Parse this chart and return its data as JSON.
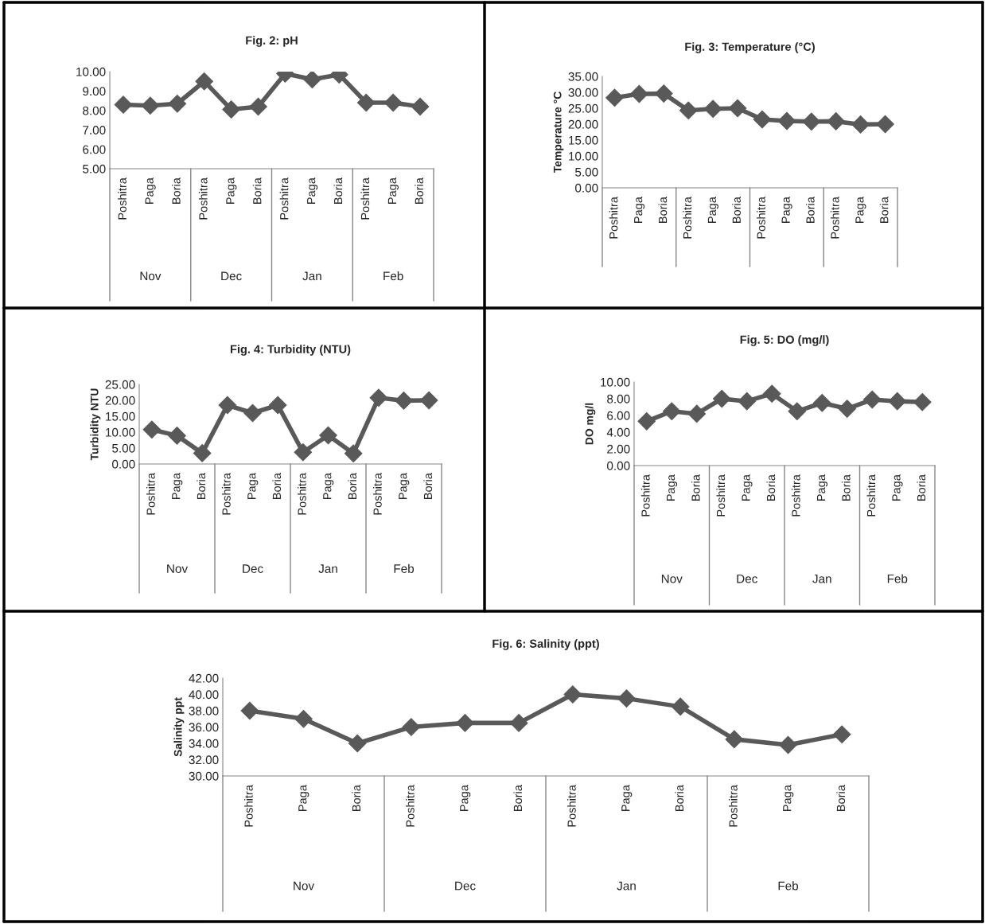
{
  "chart_data": [
    {
      "type": "line",
      "title": "Fig. 2: pH",
      "categories": [
        "Poshitra",
        "Paga",
        "Boria",
        "Poshitra",
        "Paga",
        "Boria",
        "Poshitra",
        "Paga",
        "Boria",
        "Poshitra",
        "Paga",
        "Boria"
      ],
      "annotations": [
        "Nov",
        "Dec",
        "Jan",
        "Feb"
      ],
      "series": [
        {
          "color": "#595959",
          "values": [
            8.3,
            8.25,
            8.35,
            9.5,
            8.05,
            8.2,
            9.9,
            9.6,
            9.85,
            8.4,
            8.4,
            8.2
          ]
        }
      ],
      "ylim": [
        5,
        10
      ],
      "yticks": [
        {
          "value": 5,
          "label": "5.00"
        },
        {
          "value": 6,
          "label": "6.00"
        },
        {
          "value": 7,
          "label": "7.00"
        },
        {
          "value": 8,
          "label": "8.00"
        },
        {
          "value": 9,
          "label": "9.00"
        },
        {
          "value": 10,
          "label": "10.00"
        }
      ],
      "marker": "diamond",
      "line_style": "solid",
      "grid": false,
      "legend": false
    },
    {
      "type": "line",
      "title": "Fig. 3: Temperature (°C)",
      "ylabel": "Temperature °C",
      "categories": [
        "Poshitra",
        "Paga",
        "Boria",
        "Poshitra",
        "Paga",
        "Boria",
        "Poshitra",
        "Paga",
        "Boria",
        "Poshitra",
        "Paga",
        "Boria"
      ],
      "series": [
        {
          "color": "#595959",
          "values": [
            28.3,
            29.5,
            29.6,
            24.3,
            24.8,
            25.0,
            21.5,
            21.0,
            20.8,
            20.9,
            19.9,
            20.0
          ]
        }
      ],
      "ylim": [
        0,
        35
      ],
      "yticks": [
        {
          "value": 0,
          "label": "0.00"
        },
        {
          "value": 5,
          "label": "5.00"
        },
        {
          "value": 10,
          "label": "10.00"
        },
        {
          "value": 15,
          "label": "15.00"
        },
        {
          "value": 20,
          "label": "20.00"
        },
        {
          "value": 25,
          "label": "25.00"
        },
        {
          "value": 30,
          "label": "30.00"
        },
        {
          "value": 35,
          "label": "35.00"
        }
      ],
      "marker": "diamond",
      "line_style": "solid",
      "grid": false,
      "legend": false
    },
    {
      "type": "line",
      "title": "Fig. 4: Turbidity (NTU)",
      "ylabel": "Turbidity NTU",
      "categories": [
        "Poshitra",
        "Paga",
        "Boria",
        "Poshitra",
        "Paga",
        "Boria",
        "Poshitra",
        "Paga",
        "Boria",
        "Poshitra",
        "Paga",
        "Boria"
      ],
      "annotations": [
        "Nov",
        "Dec",
        "Jan",
        "Feb"
      ],
      "series": [
        {
          "color": "#595959",
          "values": [
            10.8,
            8.9,
            3.4,
            18.5,
            16.0,
            18.5,
            3.7,
            9.0,
            3.3,
            20.8,
            19.9,
            20.0
          ]
        }
      ],
      "ylim": [
        0,
        25
      ],
      "yticks": [
        {
          "value": 0,
          "label": "0.00"
        },
        {
          "value": 5,
          "label": "5.00"
        },
        {
          "value": 10,
          "label": "10.00"
        },
        {
          "value": 15,
          "label": "15.00"
        },
        {
          "value": 20,
          "label": "20.00"
        },
        {
          "value": 25,
          "label": "25.00"
        }
      ],
      "marker": "diamond",
      "line_style": "solid",
      "grid": false,
      "legend": false
    },
    {
      "type": "line",
      "title": "Fig. 5: DO (mg/l)",
      "ylabel": "DO mg/l",
      "categories": [
        "Poshitra",
        "Paga",
        "Boria",
        "Poshitra",
        "Paga",
        "Boria",
        "Poshitra",
        "Paga",
        "Boria",
        "Poshitra",
        "Paga",
        "Boria"
      ],
      "annotations": [
        "Nov",
        "Dec",
        "Jan",
        "Feb"
      ],
      "series": [
        {
          "color": "#595959",
          "values": [
            5.3,
            6.5,
            6.2,
            8.0,
            7.7,
            8.6,
            6.5,
            7.5,
            6.8,
            7.9,
            7.7,
            7.6
          ]
        }
      ],
      "ylim": [
        0,
        10
      ],
      "yticks": [
        {
          "value": 0,
          "label": "0.00"
        },
        {
          "value": 2,
          "label": "2.00"
        },
        {
          "value": 4,
          "label": "4.00"
        },
        {
          "value": 6,
          "label": "6.00"
        },
        {
          "value": 8,
          "label": "8.00"
        },
        {
          "value": 10,
          "label": "10.00"
        }
      ],
      "marker": "diamond",
      "line_style": "solid",
      "grid": false,
      "legend": false
    },
    {
      "type": "line",
      "title": "Fig. 6: Salinity (ppt)",
      "ylabel": "Salinity ppt",
      "categories": [
        "Poshitra",
        "Paga",
        "Boria",
        "Poshitra",
        "Paga",
        "Boria",
        "Poshitra",
        "Paga",
        "Boria",
        "Poshitra",
        "Paga",
        "Boria"
      ],
      "annotations": [
        "Nov",
        "Dec",
        "Jan",
        "Feb"
      ],
      "series": [
        {
          "color": "#595959",
          "values": [
            38.0,
            37.0,
            34.0,
            36.0,
            36.5,
            36.5,
            40.0,
            39.5,
            38.5,
            34.5,
            33.8,
            35.1
          ]
        }
      ],
      "ylim": [
        30,
        42
      ],
      "yticks": [
        {
          "value": 30,
          "label": "30.00"
        },
        {
          "value": 32,
          "label": "32.00"
        },
        {
          "value": 34,
          "label": "34.00"
        },
        {
          "value": 36,
          "label": "36.00"
        },
        {
          "value": 38,
          "label": "38.00"
        },
        {
          "value": 40,
          "label": "40.00"
        },
        {
          "value": 42,
          "label": "42.00"
        }
      ],
      "marker": "diamond",
      "line_style": "solid",
      "grid": false,
      "legend": false
    }
  ]
}
